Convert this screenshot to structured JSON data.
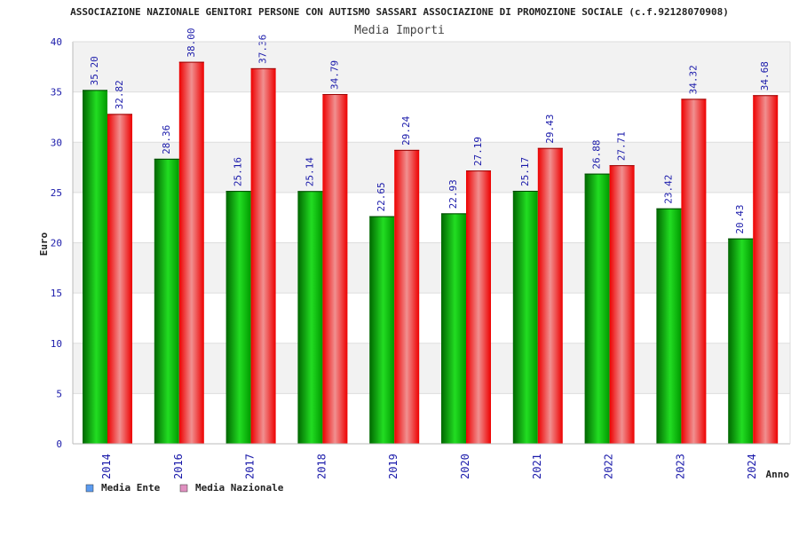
{
  "chart_data": {
    "type": "bar",
    "title": "ASSOCIAZIONE NAZIONALE GENITORI PERSONE CON AUTISMO SASSARI ASSOCIAZIONE DI PROMOZIONE SOCIALE (c.f.92128070908)",
    "subtitle": "Media Importi",
    "xlabel": "Anno",
    "ylabel": "Euro",
    "ylim": [
      0,
      40
    ],
    "yticks": [
      0,
      5,
      10,
      15,
      20,
      25,
      30,
      35,
      40
    ],
    "categories": [
      "2014",
      "2016",
      "2017",
      "2018",
      "2019",
      "2020",
      "2021",
      "2022",
      "2023",
      "2024"
    ],
    "series": [
      {
        "name": "Media Ente",
        "values": [
          35.2,
          28.36,
          25.16,
          25.14,
          22.65,
          22.93,
          25.17,
          26.88,
          23.42,
          20.43
        ],
        "labels": [
          "35.20",
          "28.36",
          "25.16",
          "25.14",
          "22.65",
          "22.93",
          "25.17",
          "26.88",
          "23.42",
          "20.43"
        ],
        "color": "#00aa00",
        "legend_swatch": "#5b9bf0"
      },
      {
        "name": "Media Nazionale",
        "values": [
          32.82,
          38.0,
          37.36,
          34.79,
          29.24,
          27.19,
          29.43,
          27.71,
          34.32,
          34.68
        ],
        "labels": [
          "32.82",
          "38.00",
          "37.36",
          "34.79",
          "29.24",
          "27.19",
          "29.43",
          "27.71",
          "34.32",
          "34.68"
        ],
        "color": "#ee1111",
        "legend_swatch": "#e090c0"
      }
    ],
    "grid": true,
    "legend_position": "bottom-left"
  },
  "colors": {
    "text_dark": "#222222",
    "tick_text": "#1a1aaa",
    "label_text": "#1a1aaa",
    "band_gray": "#f2f2f2",
    "grid_line": "#dddddd"
  }
}
